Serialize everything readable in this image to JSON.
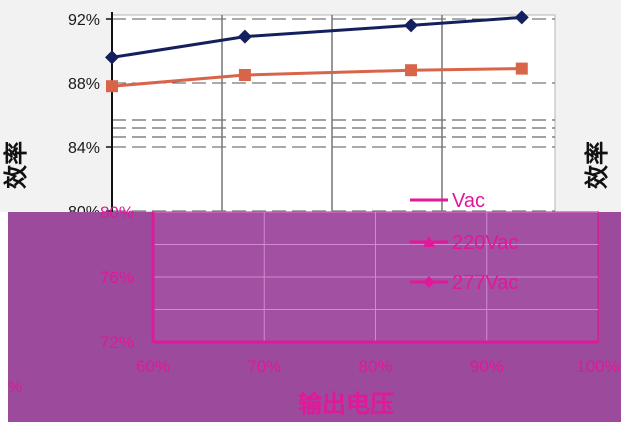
{
  "chart_data": [
    {
      "type": "line",
      "ylabel": "效率",
      "yticks": [
        "92%",
        "88%",
        "84%",
        "80%"
      ],
      "ylim": [
        80,
        92.5
      ],
      "xlim": [
        60,
        100
      ],
      "grid": true,
      "series": [
        {
          "marker": "diamond",
          "color": "#14205e",
          "x": [
            60,
            72,
            87,
            97
          ],
          "y": [
            89.6,
            90.9,
            91.6,
            92.1
          ]
        },
        {
          "marker": "square",
          "color": "#d8654a",
          "x": [
            60,
            72,
            87,
            97
          ],
          "y": [
            87.8,
            88.5,
            88.8,
            88.9
          ]
        }
      ],
      "right_fragment": "效率",
      "colors": {
        "background": "#f2f2f2",
        "tick_text": "#1a1a1a"
      }
    },
    {
      "type": "line",
      "xlabel": "输出电压",
      "xticks": [
        "60%",
        "70%",
        "80%",
        "90%",
        "100%"
      ],
      "yticks": [
        "80%",
        "76%",
        "72%"
      ],
      "xlim": [
        60,
        100
      ],
      "ylim": [
        72,
        80
      ],
      "grid": true,
      "legend_position": "right",
      "legend": [
        "Vac",
        "220Vac",
        "277Vac"
      ],
      "left_fragment": "%",
      "colors": {
        "background": "#9c4a9c",
        "accent": "#e0189a",
        "grid": "#d08ad0"
      }
    }
  ]
}
